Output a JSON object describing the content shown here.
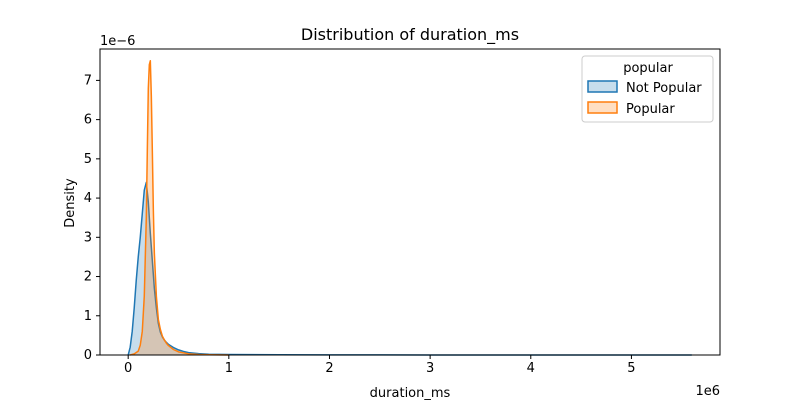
{
  "chart_data": {
    "type": "area",
    "title": "Distribution of duration_ms",
    "xlabel": "duration_ms",
    "ylabel": "Density",
    "x_offset_label": "1e6",
    "y_offset_label": "1e−6",
    "x_scale": 1000000,
    "y_scale": 1e-06,
    "xlim": [
      -280000,
      5880000
    ],
    "ylim": [
      0,
      7.8e-06
    ],
    "x_ticks": [
      0,
      1000000,
      2000000,
      3000000,
      4000000,
      5000000
    ],
    "x_tick_labels": [
      "0",
      "1",
      "2",
      "3",
      "4",
      "5"
    ],
    "y_ticks": [
      0,
      1e-06,
      2e-06,
      3e-06,
      4e-06,
      5e-06,
      6e-06,
      7e-06
    ],
    "y_tick_labels": [
      "0",
      "1",
      "2",
      "3",
      "4",
      "5",
      "6",
      "7"
    ],
    "grid": false,
    "legend": {
      "title": "popular",
      "placement": "top-right",
      "entries": [
        "Not Popular",
        "Popular"
      ]
    },
    "series": [
      {
        "name": "Not Popular",
        "color": "#1f77b4",
        "fill": "#1f77b4",
        "x": [
          0,
          20000,
          40000,
          60000,
          80000,
          100000,
          120000,
          140000,
          160000,
          180000,
          200000,
          220000,
          240000,
          260000,
          280000,
          300000,
          320000,
          340000,
          360000,
          380000,
          400000,
          450000,
          500000,
          550000,
          600000,
          700000,
          800000,
          1000000,
          1500000,
          2000000,
          3000000,
          4000000,
          5000000,
          5600000
        ],
        "y": [
          0,
          2e-07,
          6e-07,
          1.2e-06,
          1.9e-06,
          2.5e-06,
          3e-06,
          3.6e-06,
          4.2e-06,
          4.4e-06,
          3.9e-06,
          3.1e-06,
          2.4e-06,
          1.7e-06,
          1.2e-06,
          8e-07,
          5.8e-07,
          4.6e-07,
          3.8e-07,
          3.2e-07,
          2.7e-07,
          1.9e-07,
          1.3e-07,
          9e-08,
          6e-08,
          3.5e-08,
          2e-08,
          1.2e-08,
          6e-09,
          3e-09,
          1.5e-09,
          1e-09,
          5e-10,
          0
        ]
      },
      {
        "name": "Popular",
        "color": "#ff7f0e",
        "fill": "#ff7f0e",
        "x": [
          20000,
          60000,
          100000,
          120000,
          140000,
          160000,
          180000,
          190000,
          200000,
          210000,
          220000,
          230000,
          240000,
          250000,
          260000,
          280000,
          300000,
          320000,
          340000,
          360000,
          380000,
          400000,
          450000,
          500000,
          600000,
          700000,
          800000,
          1000000
        ],
        "y": [
          0,
          3e-08,
          1e-07,
          2.5e-07,
          6e-07,
          1.5e-06,
          3.5e-06,
          5.2e-06,
          6.8e-06,
          7.4e-06,
          7.5e-06,
          6.6e-06,
          5.2e-06,
          3.7e-06,
          2.6e-06,
          1.5e-06,
          9e-07,
          6.5e-07,
          4.8e-07,
          3.8e-07,
          3e-07,
          2.4e-07,
          1.4e-07,
          8e-08,
          3e-08,
          1.2e-08,
          5e-09,
          0
        ]
      }
    ]
  }
}
